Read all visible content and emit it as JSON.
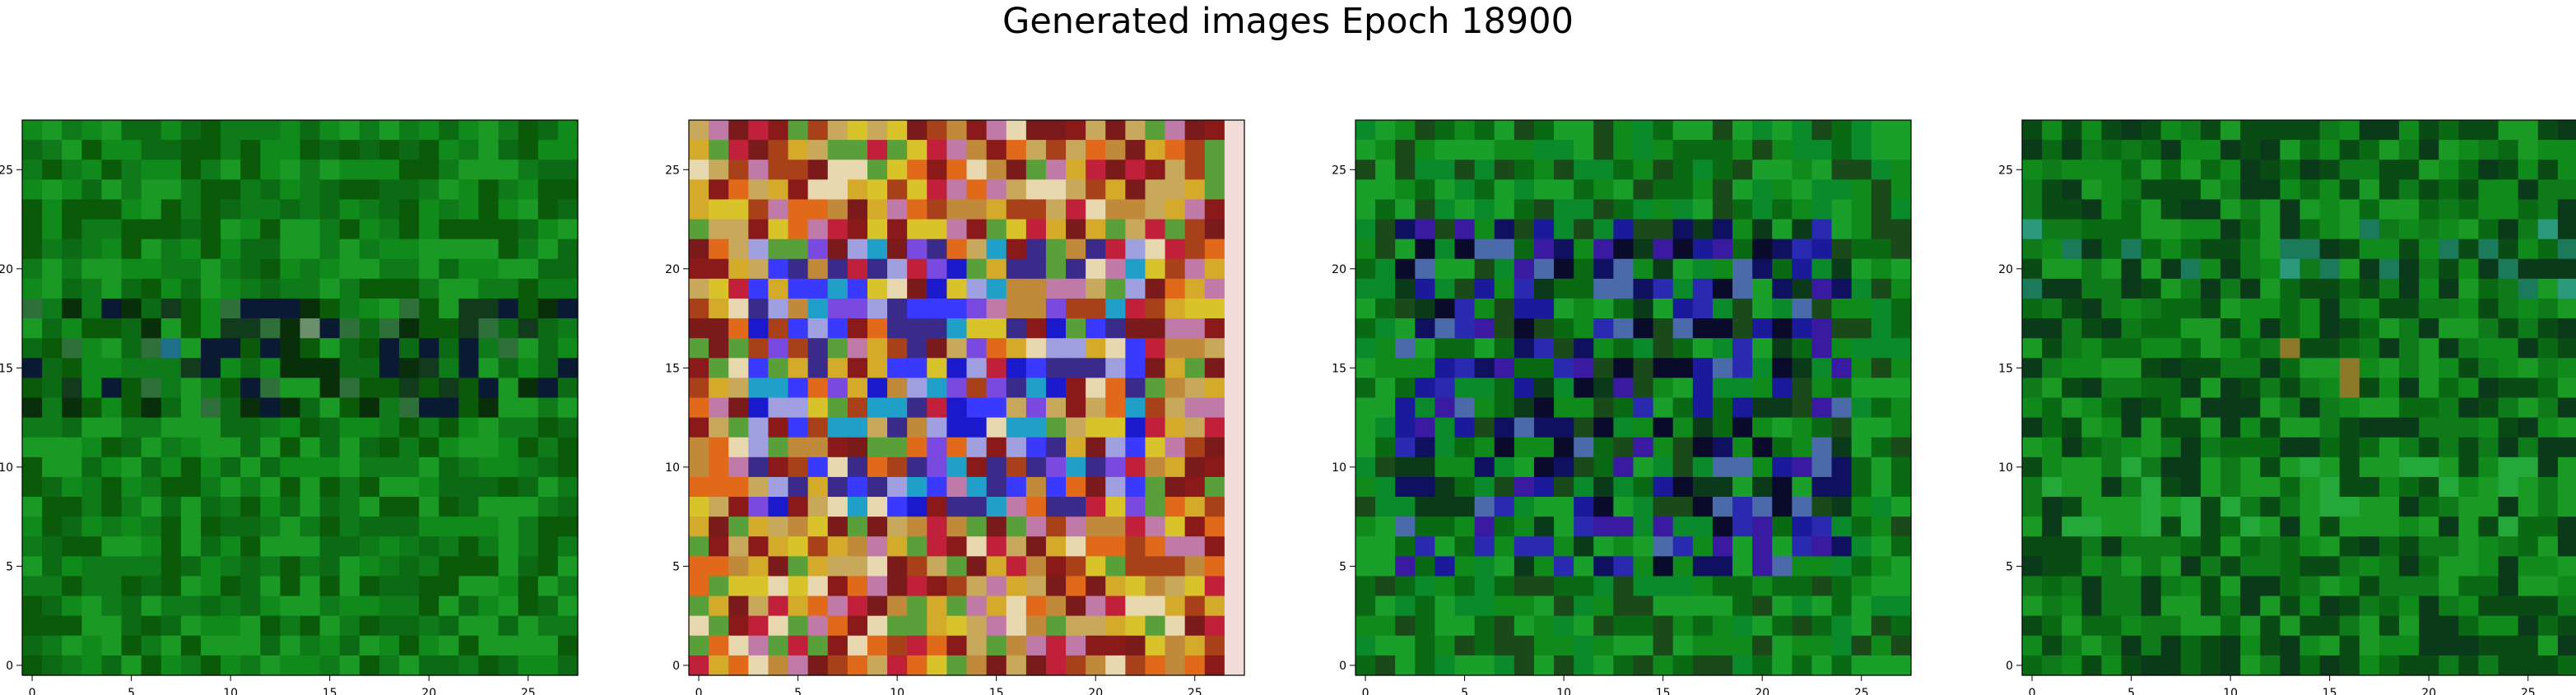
{
  "figure": {
    "title": "Generated images Epoch 18900"
  },
  "chart_data": [
    {
      "type": "heatmap",
      "subtype": "rgb-image",
      "grid_size": 28,
      "xlim": [
        -0.5,
        27.5
      ],
      "ylim": [
        27.5,
        -0.5
      ],
      "xticks": [
        0,
        5,
        10,
        15,
        20,
        25
      ],
      "yticks": [
        0,
        5,
        10,
        15,
        20,
        25
      ],
      "grid": false,
      "palette": [
        "#0a5a0a",
        "#0c6a14",
        "#0f7a19",
        "#118a1c",
        "#1a9a25",
        "#082e0a",
        "#123a1c",
        "#2e6f3a",
        "#0a1a33",
        "#6a8f6a",
        "#8a1a4a",
        "#1e6f8a"
      ],
      "description_rows": "predominantly green noise with a darker band near rows 10-14"
    },
    {
      "type": "heatmap",
      "subtype": "rgb-image",
      "grid_size": 28,
      "xlim": [
        -0.5,
        27.5
      ],
      "ylim": [
        27.5,
        -0.5
      ],
      "xticks": [
        0,
        5,
        10,
        15,
        20,
        25
      ],
      "yticks": [
        0,
        5,
        10,
        15,
        20,
        25
      ],
      "grid": false,
      "palette": [
        "#c08a3a",
        "#d4aa2a",
        "#a8401a",
        "#c0203a",
        "#e06a1a",
        "#8a1a1a",
        "#d9c32a",
        "#3a2a8a",
        "#1a1acc",
        "#3a3aff",
        "#7a4ae0",
        "#a0a0e0",
        "#c8a85a",
        "#e8d8b0",
        "#c07aa8",
        "#20a0c8",
        "#5aa03a",
        "#7a1a1a"
      ],
      "edge_color": "#f2dcd8",
      "description_rows": "multicolor noise with a blue/violet cluster in the center"
    },
    {
      "type": "heatmap",
      "subtype": "rgb-image",
      "grid_size": 28,
      "xlim": [
        -0.5,
        27.5
      ],
      "ylim": [
        27.5,
        -0.5
      ],
      "xticks": [
        0,
        5,
        10,
        15,
        20,
        25
      ],
      "yticks": [
        0,
        5,
        10,
        15,
        20,
        25
      ],
      "grid": false,
      "palette": [
        "#0a6a14",
        "#118a1c",
        "#1aa02a",
        "#0a3a1a",
        "#0a0a2a",
        "#101060",
        "#1a1a9a",
        "#2a2ab0",
        "#3a1aa0",
        "#4a6aaa",
        "#0a8a2a",
        "#1a4a1a"
      ],
      "description_rows": "green noise with a large dark blue region in the middle rows"
    },
    {
      "type": "heatmap",
      "subtype": "rgb-image",
      "grid_size": 28,
      "xlim": [
        -0.5,
        27.5
      ],
      "ylim": [
        27.5,
        -0.5
      ],
      "xticks": [
        0,
        5,
        10,
        15,
        20,
        25
      ],
      "yticks": [
        0,
        5,
        10,
        15,
        20,
        25
      ],
      "grid": false,
      "palette": [
        "#0a6a14",
        "#0f7a19",
        "#118a1c",
        "#1a9a25",
        "#25a83a",
        "#0a4a14",
        "#1a7a5a",
        "#2a9a7a",
        "#0a3a1a",
        "#8a7a2a",
        "#1a6a8a"
      ],
      "description_rows": "green noise with lighter green band near rows 18-20"
    }
  ]
}
